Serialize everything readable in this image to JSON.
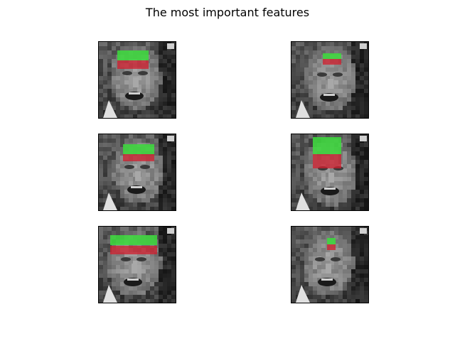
{
  "figure": {
    "title": "The most important features"
  },
  "colors": {
    "positive_feature": "#3cdc3c",
    "negative_feature": "#d21e2d",
    "face_tone": "grayscale"
  },
  "panels": [
    {
      "name": "face-panel-1",
      "highlight": "green-over-red"
    },
    {
      "name": "face-panel-2",
      "highlight": "green-over-red"
    },
    {
      "name": "face-panel-3",
      "highlight": "green-over-red"
    },
    {
      "name": "face-panel-4",
      "highlight": "green-over-red"
    },
    {
      "name": "face-panel-5",
      "highlight": "green-over-red"
    },
    {
      "name": "face-panel-6",
      "highlight": "green-over-red"
    }
  ]
}
